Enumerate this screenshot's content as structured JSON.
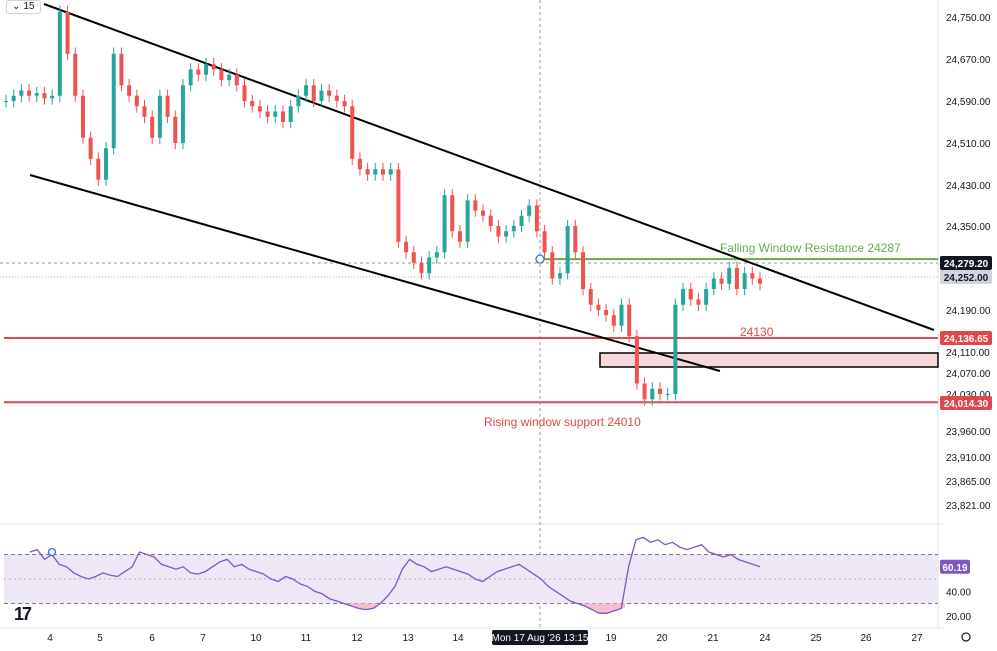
{
  "toolbar": {
    "interval": "15",
    "chevron_icon": "chevron-down-icon"
  },
  "chart_data": [
    {
      "type": "candlestick",
      "title": "",
      "xlabel": "",
      "ylabel": "",
      "ylim": [
        23780,
        24800
      ],
      "y_ticks": [
        "24,750.00",
        "24,670.00",
        "24,590.00",
        "24,510.00",
        "24,430.00",
        "24,350.00",
        "24,270.00",
        "24,190.00",
        "24,110.00",
        "24,070.00",
        "24,030.00",
        "23,960.00",
        "23,910.00",
        "23,865.00",
        "23,821.00"
      ],
      "x_ticks": [
        "4",
        "5",
        "6",
        "7",
        "10",
        "11",
        "12",
        "13",
        "14",
        "19",
        "20",
        "21",
        "24",
        "25",
        "26",
        "27"
      ],
      "crosshair_label": "Mon 17 Aug '26   13:15",
      "colors": {
        "up": "#26a69a",
        "down": "#ef5350",
        "support": "#e0474c",
        "resistance": "#6aa84f",
        "trend": "#000000"
      },
      "candles_close": [
        24590,
        24600,
        24610,
        24600,
        24605,
        24595,
        24600,
        24760,
        24680,
        24600,
        24520,
        24480,
        24440,
        24500,
        24680,
        24620,
        24600,
        24580,
        24560,
        24520,
        24600,
        24560,
        24510,
        24620,
        24650,
        24640,
        24660,
        24650,
        24630,
        24640,
        24620,
        24590,
        24580,
        24570,
        24560,
        24570,
        24550,
        24580,
        24600,
        24620,
        24590,
        24610,
        24600,
        24590,
        24580,
        24480,
        24460,
        24450,
        24460,
        24450,
        24460,
        24320,
        24300,
        24280,
        24260,
        24290,
        24300,
        24410,
        24340,
        24320,
        24400,
        24380,
        24370,
        24350,
        24330,
        24340,
        24350,
        24370,
        24390,
        24340,
        24300,
        24250,
        24260,
        24350,
        24300,
        24230,
        24200,
        24190,
        24180,
        24160,
        24200,
        24140,
        24050,
        24020,
        24040,
        24030,
        24030,
        24200,
        24230,
        24210,
        24200,
        24230,
        24250,
        24240,
        24270,
        24230,
        24260,
        24250,
        24240
      ],
      "price_labels": [
        {
          "text": "24,279.20",
          "style": "dark"
        },
        {
          "text": "24,252.00",
          "style": "grey"
        },
        {
          "text": "24,136.65",
          "style": "red"
        },
        {
          "text": "24,014.30",
          "style": "red"
        }
      ],
      "annotations": [
        {
          "text": "Falling Window Resistance 24287",
          "color": "resistance"
        },
        {
          "text": "24130",
          "color": "support"
        },
        {
          "text": "Rising window support 24010",
          "color": "support"
        }
      ],
      "levels": [
        24287,
        24136.65,
        24014.3
      ],
      "last_price": 24279.2
    },
    {
      "type": "line",
      "name": "",
      "ylim": [
        10,
        90
      ],
      "y_ticks": [
        "40.00",
        "20.00"
      ],
      "last_value_label": "60.19",
      "values": [
        72,
        74,
        66,
        70,
        62,
        60,
        55,
        52,
        50,
        52,
        55,
        53,
        52,
        56,
        60,
        72,
        70,
        68,
        62,
        60,
        58,
        60,
        55,
        54,
        56,
        60,
        64,
        66,
        60,
        62,
        58,
        56,
        54,
        50,
        48,
        52,
        50,
        46,
        44,
        40,
        38,
        34,
        32,
        30,
        28,
        26,
        25,
        26,
        30,
        36,
        44,
        58,
        66,
        62,
        60,
        56,
        58,
        60,
        58,
        56,
        54,
        50,
        48,
        52,
        56,
        58,
        60,
        62,
        58,
        54,
        50,
        44,
        40,
        36,
        32,
        30,
        28,
        25,
        22,
        22,
        24,
        26,
        60,
        82,
        84,
        80,
        82,
        78,
        80,
        76,
        74,
        76,
        78,
        72,
        70,
        68,
        70,
        66,
        64,
        62,
        60
      ]
    }
  ]
}
